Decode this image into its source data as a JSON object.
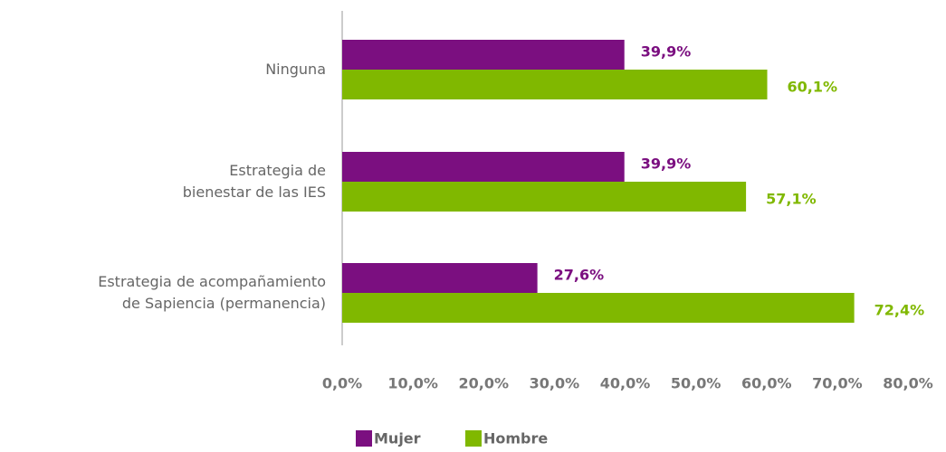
{
  "chart_data": {
    "type": "bar",
    "orientation": "horizontal",
    "categories": [
      "Ninguna",
      "Estrategia de\nbienestar de las IES",
      "Estrategia de acompañamiento\nde Sapiencia (permanencia)"
    ],
    "series": [
      {
        "name": "Mujer",
        "color": "#7b0f80",
        "values": [
          39.9,
          39.9,
          27.6
        ],
        "value_labels": [
          "39,9%",
          "39,9%",
          "27,6%"
        ]
      },
      {
        "name": "Hombre",
        "color": "#80b800",
        "values": [
          60.1,
          57.1,
          72.4
        ],
        "value_labels": [
          "60,1%",
          "57,1%",
          "72,4%"
        ]
      }
    ],
    "xlim": [
      0,
      80
    ],
    "xticks": [
      {
        "value": 0,
        "label": "0,0%"
      },
      {
        "value": 10,
        "label": "10,0%"
      },
      {
        "value": 20,
        "label": "20,0%"
      },
      {
        "value": 30,
        "label": "30,0%"
      },
      {
        "value": 40,
        "label": "40,0%"
      },
      {
        "value": 50,
        "label": "50,0%"
      },
      {
        "value": 60,
        "label": "60,0%"
      },
      {
        "value": 70,
        "label": "70,0%"
      },
      {
        "value": 80,
        "label": "80,0%"
      }
    ],
    "grid": false,
    "legend": "bottom"
  }
}
